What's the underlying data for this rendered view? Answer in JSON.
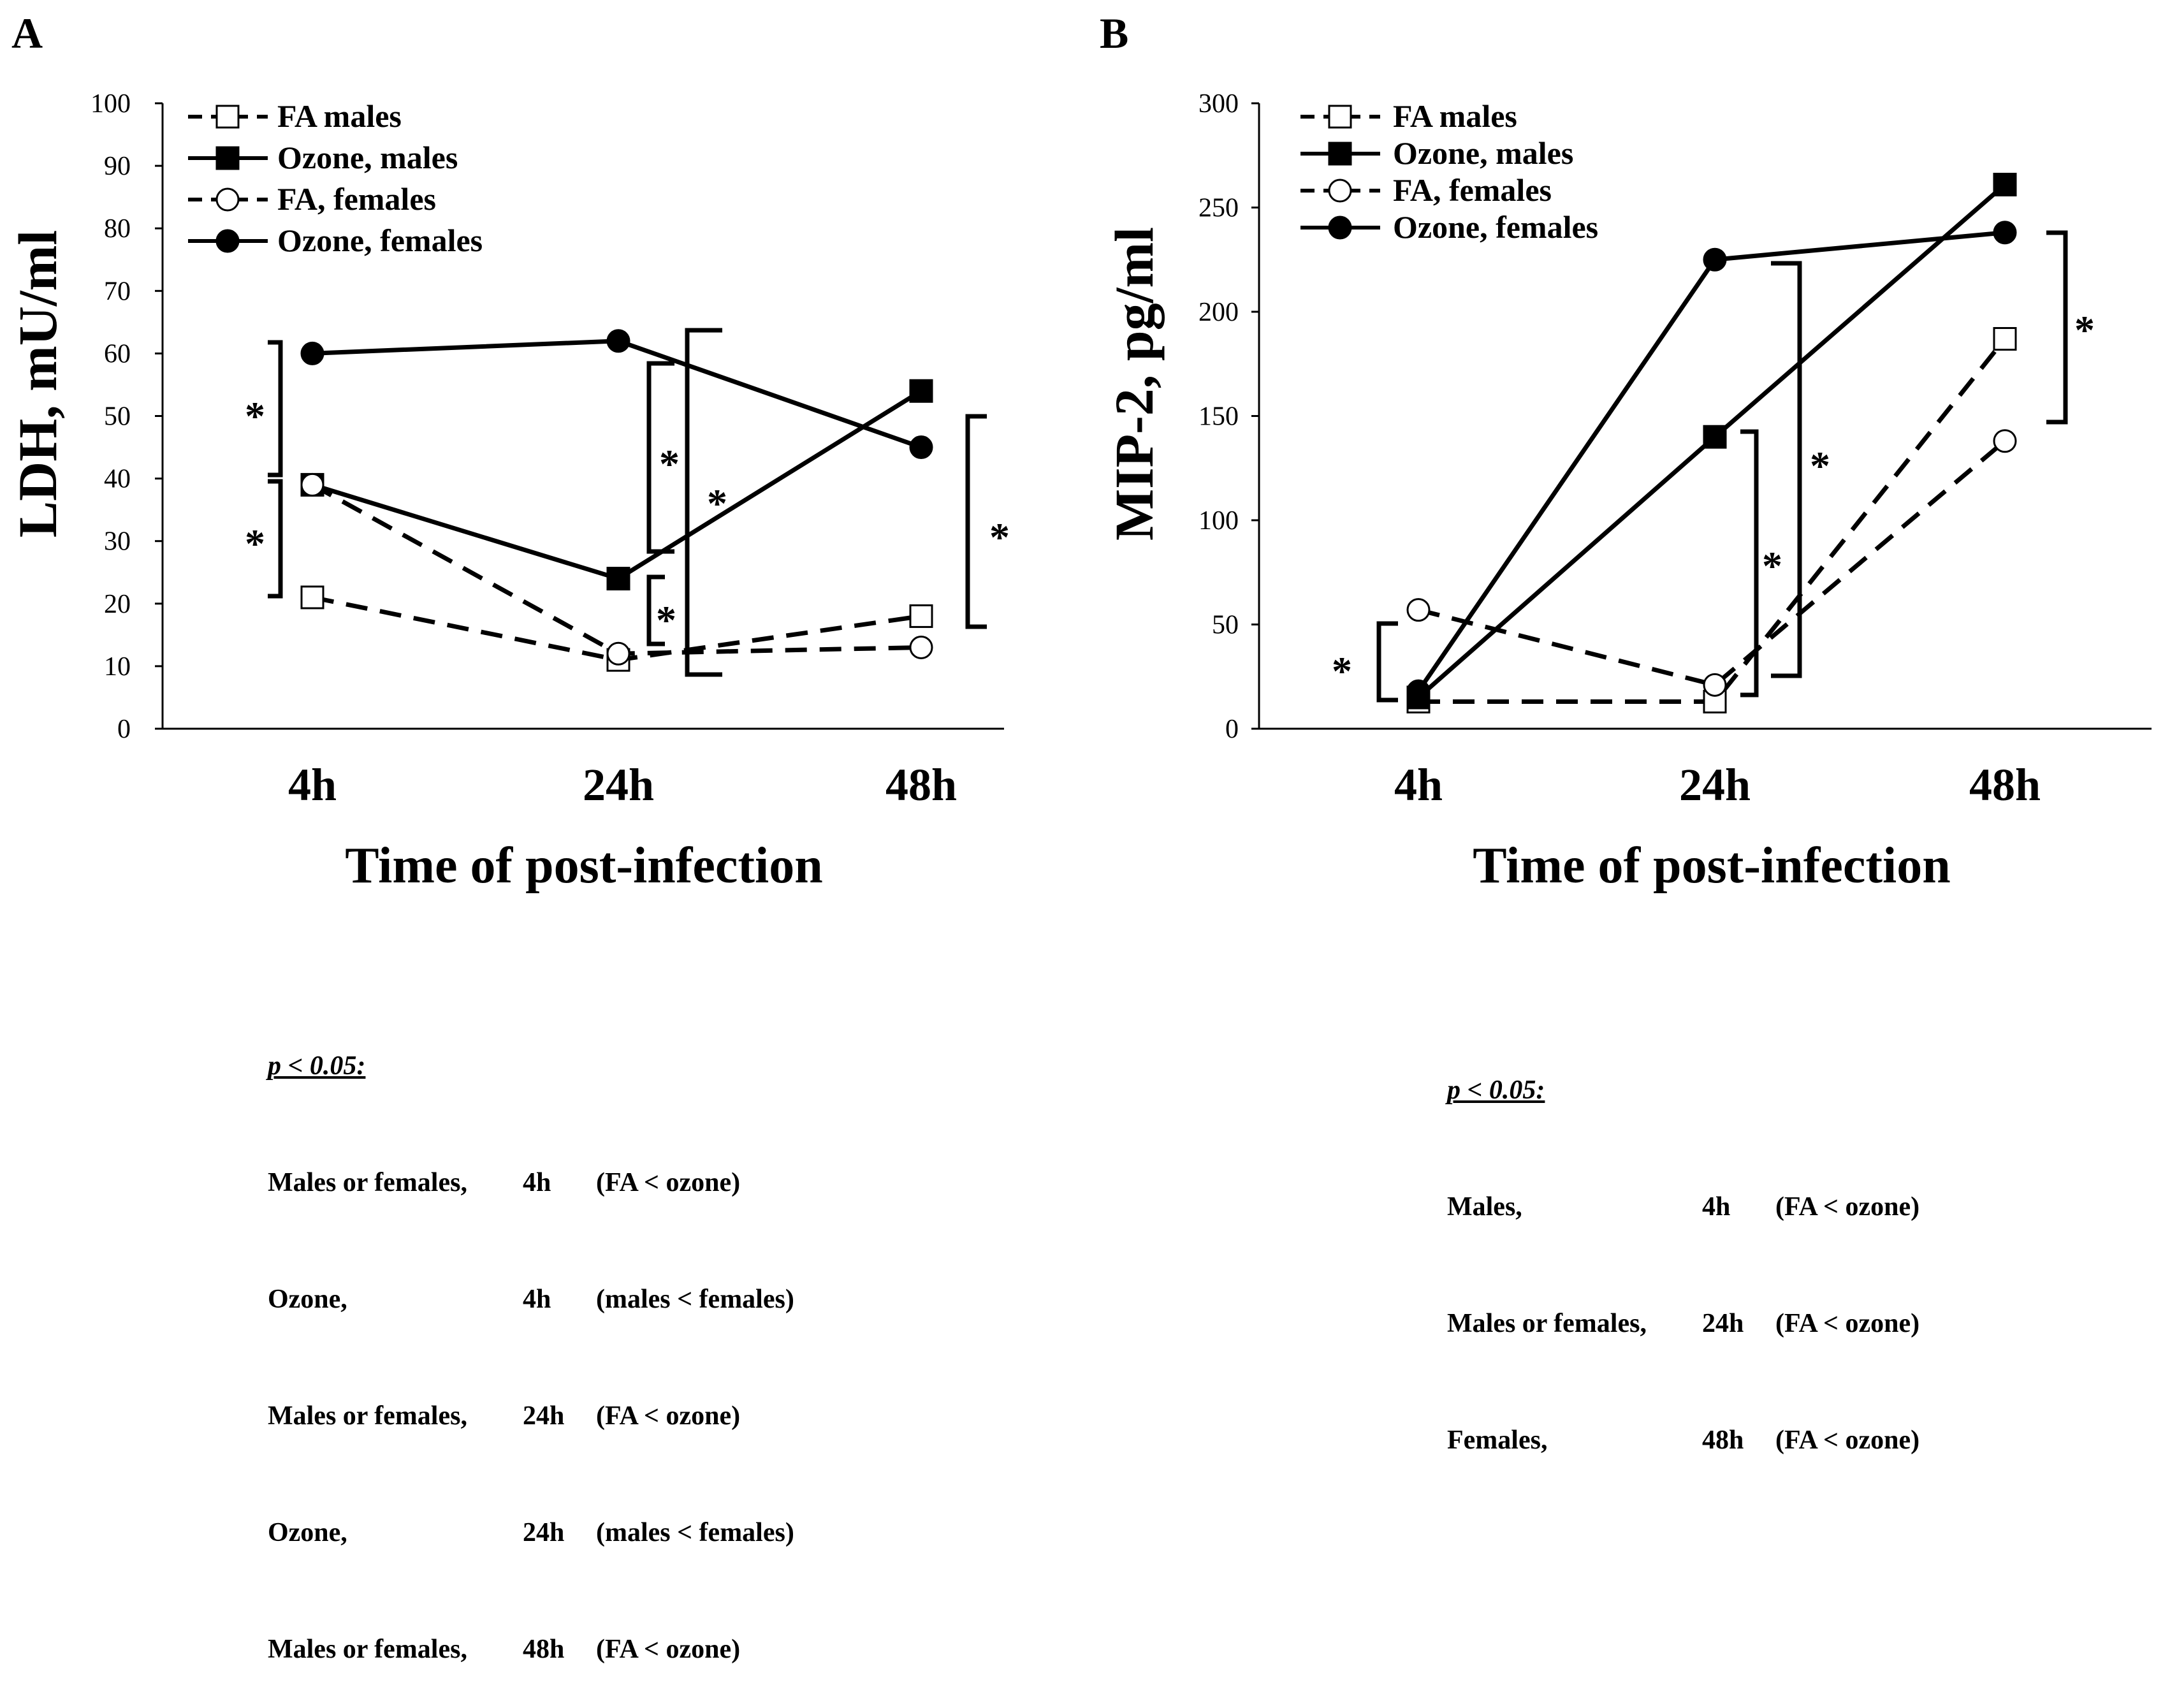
{
  "chart_data": [
    {
      "type": "line",
      "panel_label": "A",
      "ylabel": "LDH, mU/ml",
      "xlabel": "Time of post-infection",
      "categories": [
        "4h",
        "24h",
        "48h"
      ],
      "ylim": [
        0,
        100
      ],
      "yticks": [
        "0",
        "10",
        "20",
        "30",
        "40",
        "50",
        "60",
        "70",
        "80",
        "90",
        "100"
      ],
      "legend_position": "top-left",
      "series": [
        {
          "name": "FA males",
          "values": [
            21,
            11,
            18
          ],
          "marker": "square-open",
          "dash": true
        },
        {
          "name": "Ozone, males",
          "values": [
            39,
            24,
            54
          ],
          "marker": "square-filled",
          "dash": false
        },
        {
          "name": "FA, females",
          "values": [
            39,
            12,
            13
          ],
          "marker": "circle-open",
          "dash": true
        },
        {
          "name": "Ozone, females",
          "values": [
            60,
            62,
            45
          ],
          "marker": "circle-filled",
          "dash": false
        }
      ],
      "annotations": [
        {
          "text": "*",
          "note": "4h FA females vs Ozone females"
        },
        {
          "text": "*",
          "note": "4h FA males vs Ozone males"
        },
        {
          "text": "*",
          "note": "24h Ozone males vs Ozone females"
        },
        {
          "text": "*",
          "note": "24h FA vs Ozone females"
        },
        {
          "text": "*",
          "note": "24h FA vs Ozone males"
        },
        {
          "text": "*",
          "note": "48h FA vs Ozone"
        }
      ],
      "significance": {
        "header": "p < 0.05:",
        "rows": [
          [
            "Males or females,",
            "4h",
            "(FA < ozone)"
          ],
          [
            "Ozone,",
            "4h",
            "(males < females)"
          ],
          [
            "Males or females,",
            "24h",
            "(FA < ozone)"
          ],
          [
            "Ozone,",
            "24h",
            "(males < females)"
          ],
          [
            "Males or females,",
            "48h",
            "(FA < ozone)"
          ]
        ]
      }
    },
    {
      "type": "line",
      "panel_label": "B",
      "ylabel": "MIP-2, pg/ml",
      "xlabel": "Time of post-infection",
      "categories": [
        "4h",
        "24h",
        "48h"
      ],
      "ylim": [
        0,
        300
      ],
      "yticks": [
        "0",
        "50",
        "100",
        "150",
        "200",
        "250",
        "300"
      ],
      "legend_position": "top-left",
      "series": [
        {
          "name": "FA males",
          "values": [
            13,
            13,
            187
          ],
          "marker": "square-open",
          "dash": true
        },
        {
          "name": "Ozone, males",
          "values": [
            15,
            140,
            261
          ],
          "marker": "square-filled",
          "dash": false
        },
        {
          "name": "FA, females",
          "values": [
            57,
            21,
            138
          ],
          "marker": "circle-open",
          "dash": true
        },
        {
          "name": "Ozone, females",
          "values": [
            18,
            225,
            238
          ],
          "marker": "circle-filled",
          "dash": false
        }
      ],
      "annotations": [
        {
          "text": "*",
          "note": "4h males FA vs ozone"
        },
        {
          "text": "*",
          "note": "24h FA vs Ozone males"
        },
        {
          "text": "*",
          "note": "24h FA vs Ozone females"
        },
        {
          "text": "*",
          "note": "48h females FA vs ozone"
        }
      ],
      "significance": {
        "header": "p < 0.05:",
        "rows": [
          [
            "Males,",
            "4h",
            "(FA < ozone)"
          ],
          [
            "Males or females,",
            "24h",
            "(FA < ozone)"
          ],
          [
            "Females,",
            "48h",
            "(FA < ozone)"
          ]
        ]
      }
    }
  ]
}
